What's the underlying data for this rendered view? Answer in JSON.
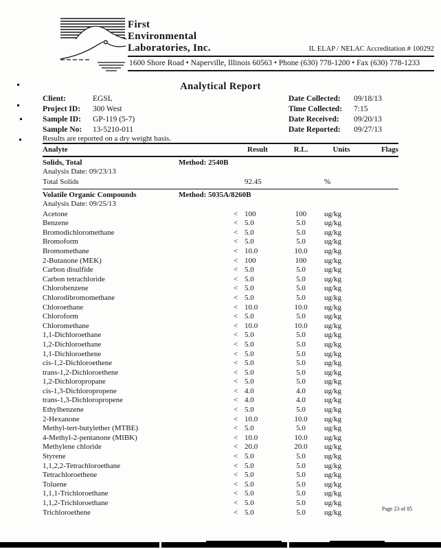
{
  "letterhead": {
    "company_line1": "First",
    "company_line2": "Environmental",
    "company_line3": "Laboratories, Inc.",
    "accreditation": "IL ELAP / NELAC Accreditation # 100292",
    "address": "1600 Shore Road • Naperville, Illinois 60563 • Phone (630) 778-1200 • Fax (630) 778-1233",
    "logo": "mountain-landscape-line-art"
  },
  "report": {
    "title": "Analytical Report",
    "note": "Results are reported on a dry weight basis.",
    "info_left": [
      {
        "label": "Client:",
        "value": "EGSL"
      },
      {
        "label": "Project ID:",
        "value": "300 West"
      },
      {
        "label": "Sample ID:",
        "value": "GP-119  (5-7)"
      },
      {
        "label": "Sample No:",
        "value": "13-5210-011"
      }
    ],
    "info_right": [
      {
        "label": "Date Collected:",
        "value": "09/18/13"
      },
      {
        "label": "Time Collected:",
        "value": "7:15"
      },
      {
        "label": "Date Received:",
        "value": "09/20/13"
      },
      {
        "label": "Date Reported:",
        "value": "09/27/13"
      }
    ]
  },
  "table": {
    "columns": {
      "analyte": "Analyte",
      "result": "Result",
      "rl": "R.L.",
      "units": "Units",
      "flags": "Flags"
    },
    "sections": [
      {
        "name": "Solids, Total",
        "method": "Method: 2540B",
        "analysis_date": "Analysis Date:  09/23/13",
        "rows": [
          {
            "analyte": "Total Solids",
            "op": "",
            "result": "92.45",
            "rl": "",
            "units": "%",
            "flags": ""
          }
        ]
      },
      {
        "name": "Volatile Organic Compounds",
        "method": "Method: 5035A/8260B",
        "analysis_date": "Analysis Date:  09/25/13",
        "rows": [
          {
            "analyte": "Acetone",
            "op": "<",
            "result": "100",
            "rl": "100",
            "units": "ug/kg",
            "flags": ""
          },
          {
            "analyte": "Benzene",
            "op": "<",
            "result": "5.0",
            "rl": "5.0",
            "units": "ug/kg",
            "flags": ""
          },
          {
            "analyte": "Bromodichloromethane",
            "op": "<",
            "result": "5.0",
            "rl": "5.0",
            "units": "ug/kg",
            "flags": ""
          },
          {
            "analyte": "Bromoform",
            "op": "<",
            "result": "5.0",
            "rl": "5.0",
            "units": "ug/kg",
            "flags": ""
          },
          {
            "analyte": "Bromomethane",
            "op": "<",
            "result": "10.0",
            "rl": "10.0",
            "units": "ug/kg",
            "flags": ""
          },
          {
            "analyte": "2-Butanone (MEK)",
            "op": "<",
            "result": "100",
            "rl": "100",
            "units": "ug/kg",
            "flags": ""
          },
          {
            "analyte": "Carbon disulfide",
            "op": "<",
            "result": "5.0",
            "rl": "5.0",
            "units": "ug/kg",
            "flags": ""
          },
          {
            "analyte": "Carbon tetrachloride",
            "op": "<",
            "result": "5.0",
            "rl": "5.0",
            "units": "ug/kg",
            "flags": ""
          },
          {
            "analyte": "Chlorobenzene",
            "op": "<",
            "result": "5.0",
            "rl": "5.0",
            "units": "ug/kg",
            "flags": ""
          },
          {
            "analyte": "Chlorodibromomethane",
            "op": "<",
            "result": "5.0",
            "rl": "5.0",
            "units": "ug/kg",
            "flags": ""
          },
          {
            "analyte": "Chloroethane",
            "op": "<",
            "result": "10.0",
            "rl": "10.0",
            "units": "ug/kg",
            "flags": ""
          },
          {
            "analyte": "Chloroform",
            "op": "<",
            "result": "5.0",
            "rl": "5.0",
            "units": "ug/kg",
            "flags": ""
          },
          {
            "analyte": "Chloromethane",
            "op": "<",
            "result": "10.0",
            "rl": "10.0",
            "units": "ug/kg",
            "flags": ""
          },
          {
            "analyte": "1,1-Dichloroethane",
            "op": "<",
            "result": "5.0",
            "rl": "5.0",
            "units": "ug/kg",
            "flags": ""
          },
          {
            "analyte": "1,2-Dichloroethane",
            "op": "<",
            "result": "5.0",
            "rl": "5.0",
            "units": "ug/kg",
            "flags": ""
          },
          {
            "analyte": "1,1-Dichloroethene",
            "op": "<",
            "result": "5.0",
            "rl": "5.0",
            "units": "ug/kg",
            "flags": ""
          },
          {
            "analyte": "cis-1,2-Dichloroethene",
            "op": "<",
            "result": "5.0",
            "rl": "5.0",
            "units": "ug/kg",
            "flags": ""
          },
          {
            "analyte": "trans-1,2-Dichloroethene",
            "op": "<",
            "result": "5.0",
            "rl": "5.0",
            "units": "ug/kg",
            "flags": ""
          },
          {
            "analyte": "1,2-Dichloropropane",
            "op": "<",
            "result": "5.0",
            "rl": "5.0",
            "units": "ug/kg",
            "flags": ""
          },
          {
            "analyte": "cis-1,3-Dichloropropene",
            "op": "<",
            "result": "4.0",
            "rl": "4.0",
            "units": "ug/kg",
            "flags": ""
          },
          {
            "analyte": "trans-1,3-Dichloropropene",
            "op": "<",
            "result": "4.0",
            "rl": "4.0",
            "units": "ug/kg",
            "flags": ""
          },
          {
            "analyte": "Ethylbenzene",
            "op": "<",
            "result": "5.0",
            "rl": "5.0",
            "units": "ug/kg",
            "flags": ""
          },
          {
            "analyte": "2-Hexanone",
            "op": "<",
            "result": "10.0",
            "rl": "10.0",
            "units": "ug/kg",
            "flags": ""
          },
          {
            "analyte": "Methyl-tert-butylether (MTBE)",
            "op": "<",
            "result": "5.0",
            "rl": "5.0",
            "units": "ug/kg",
            "flags": ""
          },
          {
            "analyte": "4-Methyl-2-pentanone  (MIBK)",
            "op": "<",
            "result": "10.0",
            "rl": "10.0",
            "units": "ug/kg",
            "flags": ""
          },
          {
            "analyte": "Methylene chloride",
            "op": "<",
            "result": "20.0",
            "rl": "20.0",
            "units": "ug/kg",
            "flags": ""
          },
          {
            "analyte": "Styrene",
            "op": "<",
            "result": "5.0",
            "rl": "5.0",
            "units": "ug/kg",
            "flags": ""
          },
          {
            "analyte": "1,1,2,2-Tetrachloroethane",
            "op": "<",
            "result": "5.0",
            "rl": "5.0",
            "units": "ug/kg",
            "flags": ""
          },
          {
            "analyte": "Tetrachloroethene",
            "op": "<",
            "result": "5.0",
            "rl": "5.0",
            "units": "ug/kg",
            "flags": ""
          },
          {
            "analyte": "Toluene",
            "op": "<",
            "result": "5.0",
            "rl": "5.0",
            "units": "ug/kg",
            "flags": ""
          },
          {
            "analyte": "1,1,1-Trichloroethane",
            "op": "<",
            "result": "5.0",
            "rl": "5.0",
            "units": "ug/kg",
            "flags": ""
          },
          {
            "analyte": "1,1,2-Trichloroethane",
            "op": "<",
            "result": "5.0",
            "rl": "5.0",
            "units": "ug/kg",
            "flags": ""
          },
          {
            "analyte": "Trichloroethene",
            "op": "<",
            "result": "5.0",
            "rl": "5.0",
            "units": "ug/kg",
            "flags": ""
          }
        ]
      }
    ]
  },
  "footer": {
    "page_label": "Page 23 of 85"
  }
}
